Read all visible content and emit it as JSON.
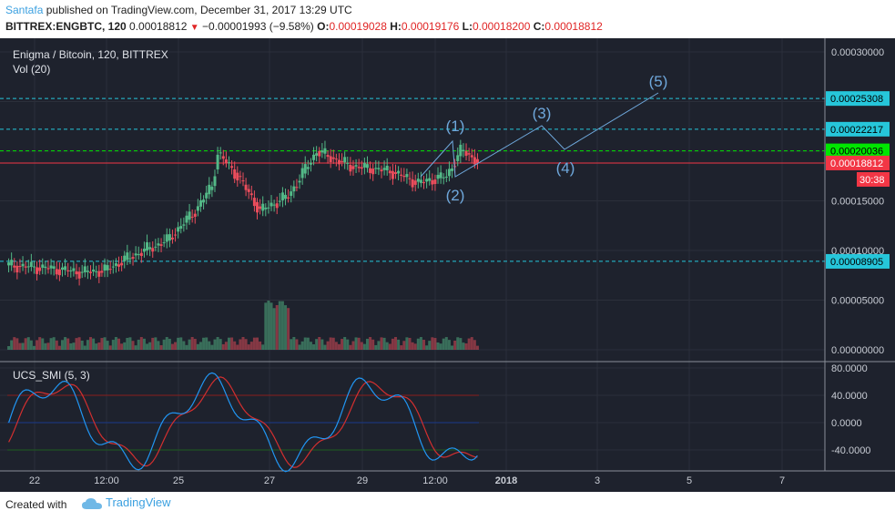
{
  "header": {
    "author": "Santafa",
    "published": "published on TradingView.com, December 31, 2017 13:29 UTC",
    "symbol": "BITTREX:ENGBTC, 120",
    "last": "0.00018812",
    "change": "−0.00001993 (−9.58%)",
    "o_label": "O:",
    "o": "0.00019028",
    "h_label": "H:",
    "h": "0.00019176",
    "l_label": "L:",
    "l": "0.00018200",
    "c_label": "C:",
    "c": "0.00018812"
  },
  "legend": {
    "title": "Enigma / Bitcoin, 120, BITTREX",
    "vol": "Vol (20)",
    "indicator": "UCS_SMI (5, 3)"
  },
  "colors": {
    "background": "#1e222d",
    "up": "#53b987",
    "down": "#eb4d5c",
    "grid": "#2b2f3a",
    "text": "#c8ccd4",
    "annotation": "#6fa8dc",
    "level_cyan": "#26c6da",
    "level_green": "#00e600",
    "level_red": "#f23645",
    "smi_line": "#2196f3",
    "smi_signal": "#d32f2f"
  },
  "chart_data": {
    "type": "candlestick",
    "x_ticks": [
      "22",
      "12:00",
      "25",
      "27",
      "29",
      "12:00",
      "2018",
      "3",
      "5",
      "7"
    ],
    "price_ticks": [
      "0.00030000",
      "0.00025000",
      "0.00020000",
      "0.00015000",
      "0.00010000",
      "0.00005000",
      "0.00000000"
    ],
    "smi_ticks": [
      "80.0000",
      "40.0000",
      "0.0000",
      "-40.0000"
    ],
    "levels": [
      {
        "label": "0.00025308",
        "value": 0.00025308,
        "kind": "cyan"
      },
      {
        "label": "0.00022217",
        "value": 0.00022217,
        "kind": "cyan"
      },
      {
        "label": "0.00020036",
        "value": 0.00020036,
        "kind": "green"
      },
      {
        "label": "0.00018812",
        "value": 0.00018812,
        "kind": "red"
      },
      {
        "label": "0.00008905",
        "value": 8.905e-05,
        "kind": "cyan"
      }
    ],
    "countdown": "30:38",
    "wave_labels": [
      "(1)",
      "(2)",
      "(3)",
      "(4)",
      "(5)"
    ],
    "price_range": [
      0,
      0.0003
    ],
    "smi_range": [
      -60,
      80
    ]
  }
}
